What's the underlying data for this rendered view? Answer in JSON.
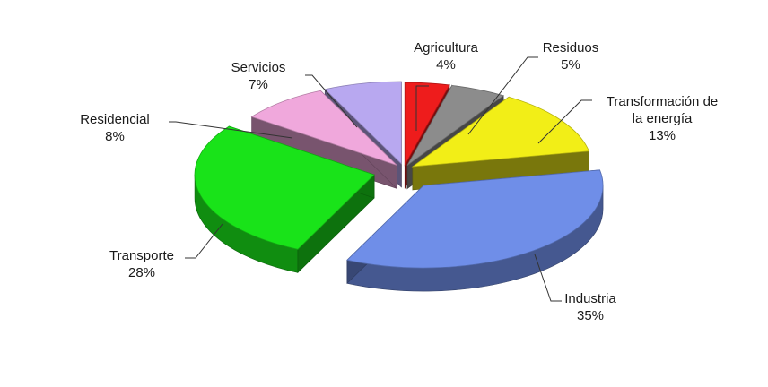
{
  "chart_data": {
    "type": "pie",
    "style": "3d-exploded",
    "title": "",
    "slices": [
      {
        "label": [
          "Agricultura"
        ],
        "percent": "4%",
        "value": 4,
        "color": "#ee1c1c"
      },
      {
        "label": [
          "Residuos"
        ],
        "percent": "5%",
        "value": 5,
        "color": "#8c8c8c"
      },
      {
        "label": [
          "Transformación de",
          "la energía"
        ],
        "percent": "13%",
        "value": 13,
        "color": "#f2ee17"
      },
      {
        "label": [
          "Industria"
        ],
        "percent": "35%",
        "value": 35,
        "color": "#6f8ee8"
      },
      {
        "label": [
          "Transporte"
        ],
        "percent": "28%",
        "value": 28,
        "color": "#19e319"
      },
      {
        "label": [
          "Residencial"
        ],
        "percent": "8%",
        "value": 8,
        "color": "#f0a8dc"
      },
      {
        "label": [
          "Servicios"
        ],
        "percent": "7%",
        "value": 7,
        "color": "#b8a8f0"
      }
    ],
    "legend": "none",
    "data_labels": "outside-with-leader-lines"
  }
}
